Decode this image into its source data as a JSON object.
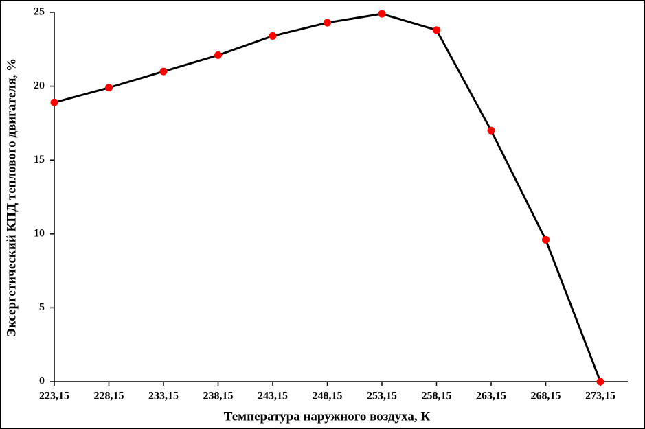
{
  "chart_data": {
    "type": "line",
    "x_label": "Температура наружного воздуха, К",
    "y_label": "Эксергетический КПД теплового двигателя, %",
    "x": [
      223.15,
      228.15,
      233.15,
      238.15,
      243.15,
      248.15,
      253.15,
      258.15,
      263.15,
      268.15,
      273.15
    ],
    "series": [
      {
        "line_color": "#000000",
        "color": "#ff0000",
        "values": [
          18.9,
          19.9,
          21.0,
          22.1,
          23.4,
          24.3,
          24.9,
          23.8,
          17.0,
          9.6,
          0
        ]
      }
    ],
    "xlim": [
      223.15,
      273.15
    ],
    "xticks": [
      {
        "value": 223.15,
        "label": "223,15"
      },
      {
        "value": 228.15,
        "label": "228,15"
      },
      {
        "value": 233.15,
        "label": "233,15"
      },
      {
        "value": 238.15,
        "label": "238,15"
      },
      {
        "value": 243.15,
        "label": "243,15"
      },
      {
        "value": 248.15,
        "label": "248,15"
      },
      {
        "value": 253.15,
        "label": "253,15"
      },
      {
        "value": 258.15,
        "label": "258,15"
      },
      {
        "value": 263.15,
        "label": "263,15"
      },
      {
        "value": 268.15,
        "label": "268,15"
      },
      {
        "value": 273.15,
        "label": "273,15"
      }
    ],
    "ylim": [
      0,
      25
    ],
    "yticks": [
      0,
      5,
      10,
      15,
      20,
      25
    ],
    "grid": false
  }
}
